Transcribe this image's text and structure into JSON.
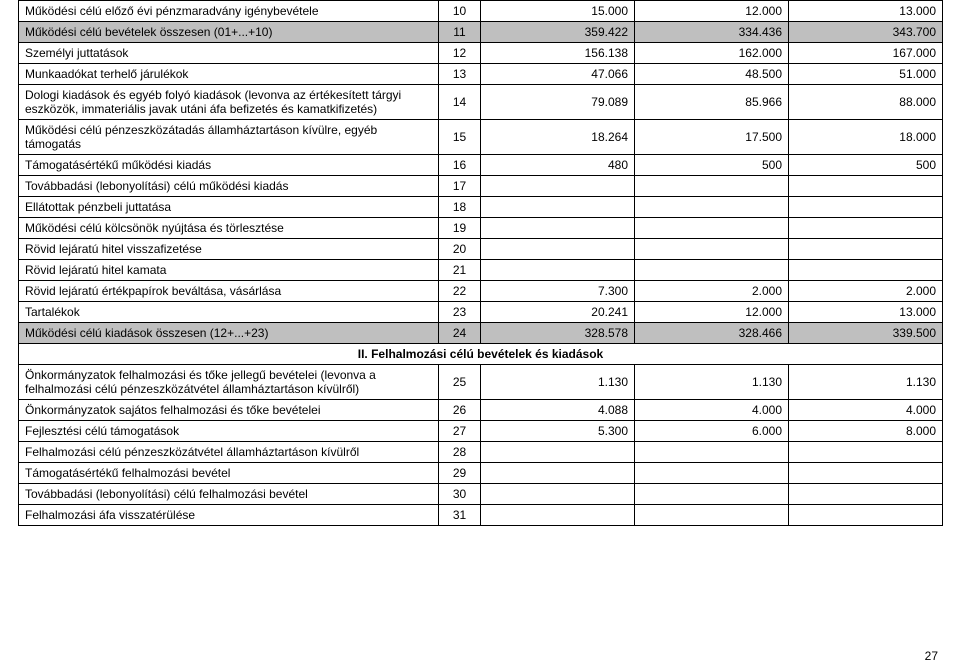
{
  "colors": {
    "shaded_bg": "#bfbfbf",
    "border": "#000000",
    "text": "#000000",
    "page_bg": "#ffffff"
  },
  "font": {
    "family": "Arial",
    "base_size_pt": 9
  },
  "page_number": "27",
  "section2_title": "II. Felhalmozási célú bevételek és kiadások",
  "rows": [
    {
      "label": "Működési célú előző évi pénzmaradvány igénybevétele",
      "idx": "10",
      "v1": "15.000",
      "v2": "12.000",
      "v3": "13.000",
      "shaded": false
    },
    {
      "label": "Működési célú bevételek összesen (01+...+10)",
      "idx": "11",
      "v1": "359.422",
      "v2": "334.436",
      "v3": "343.700",
      "shaded": true
    },
    {
      "label": "Személyi juttatások",
      "idx": "12",
      "v1": "156.138",
      "v2": "162.000",
      "v3": "167.000",
      "shaded": false
    },
    {
      "label": "Munkaadókat terhelő járulékok",
      "idx": "13",
      "v1": "47.066",
      "v2": "48.500",
      "v3": "51.000",
      "shaded": false
    },
    {
      "label": "Dologi kiadások és egyéb folyó kiadások (levonva az értékesített tárgyi eszközök, immateriális javak utáni áfa befizetés és kamatkifizetés)",
      "idx": "14",
      "v1": "79.089",
      "v2": "85.966",
      "v3": "88.000",
      "shaded": false
    },
    {
      "label": "Működési célú pénzeszközátadás államháztartáson kívülre, egyéb támogatás",
      "idx": "15",
      "v1": "18.264",
      "v2": "17.500",
      "v3": "18.000",
      "shaded": false
    },
    {
      "label": "Támogatásértékű működési kiadás",
      "idx": "16",
      "v1": "480",
      "v2": "500",
      "v3": "500",
      "shaded": false
    },
    {
      "label": "Továbbadási (lebonyolítási) célú működési kiadás",
      "idx": "17",
      "v1": "",
      "v2": "",
      "v3": "",
      "shaded": false
    },
    {
      "label": "Ellátottak pénzbeli juttatása",
      "idx": "18",
      "v1": "",
      "v2": "",
      "v3": "",
      "shaded": false
    },
    {
      "label": "Működési célú kölcsönök nyújtása és törlesztése",
      "idx": "19",
      "v1": "",
      "v2": "",
      "v3": "",
      "shaded": false
    },
    {
      "label": "Rövid lejáratú hitel visszafizetése",
      "idx": "20",
      "v1": "",
      "v2": "",
      "v3": "",
      "shaded": false
    },
    {
      "label": "Rövid lejáratú hitel kamata",
      "idx": "21",
      "v1": "",
      "v2": "",
      "v3": "",
      "shaded": false
    },
    {
      "label": "Rövid lejáratú értékpapírok beváltása, vásárlása",
      "idx": "22",
      "v1": "7.300",
      "v2": "2.000",
      "v3": "2.000",
      "shaded": false
    },
    {
      "label": "Tartalékok",
      "idx": "23",
      "v1": "20.241",
      "v2": "12.000",
      "v3": "13.000",
      "shaded": false
    },
    {
      "label": "Működési célú kiadások összesen (12+...+23)",
      "idx": "24",
      "v1": "328.578",
      "v2": "328.466",
      "v3": "339.500",
      "shaded": true
    }
  ],
  "rows2": [
    {
      "label": "Önkormányzatok felhalmozási és tőke jellegű bevételei (levonva a felhalmozási célú pénzeszközátvétel államháztartáson kívülről)",
      "idx": "25",
      "v1": "1.130",
      "v2": "1.130",
      "v3": "1.130",
      "shaded": false
    },
    {
      "label": "Önkormányzatok sajátos felhalmozási és tőke bevételei",
      "idx": "26",
      "v1": "4.088",
      "v2": "4.000",
      "v3": "4.000",
      "shaded": false
    },
    {
      "label": "Fejlesztési célú támogatások",
      "idx": "27",
      "v1": "5.300",
      "v2": "6.000",
      "v3": "8.000",
      "shaded": false
    },
    {
      "label": "Felhalmozási célú pénzeszközátvétel államháztartáson kívülről",
      "idx": "28",
      "v1": "",
      "v2": "",
      "v3": "",
      "shaded": false
    },
    {
      "label": "Támogatásértékű felhalmozási bevétel",
      "idx": "29",
      "v1": "",
      "v2": "",
      "v3": "",
      "shaded": false
    },
    {
      "label": "Továbbadási (lebonyolítási) célú felhalmozási bevétel",
      "idx": "30",
      "v1": "",
      "v2": "",
      "v3": "",
      "shaded": false
    },
    {
      "label": "Felhalmozási áfa visszatérülése",
      "idx": "31",
      "v1": "",
      "v2": "",
      "v3": "",
      "shaded": false
    }
  ]
}
